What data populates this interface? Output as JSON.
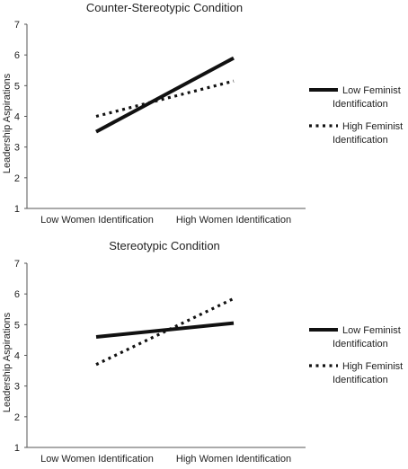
{
  "chart_data": [
    {
      "type": "line",
      "title": "Counter-Stereotypic Condition",
      "xlabel": "",
      "ylabel": "Leadership Aspirations",
      "categories": [
        "Low Women Identification",
        "High Women Identification"
      ],
      "ylim": [
        1,
        7
      ],
      "yticks": [
        "1",
        "2",
        "3",
        "4",
        "5",
        "6",
        "7"
      ],
      "grid": false,
      "legend_position": "right",
      "series": [
        {
          "name": "Low Feminist Identification",
          "line1": "Low Feminist",
          "line2": "Identification",
          "style": "solid",
          "values": [
            3.5,
            5.9
          ]
        },
        {
          "name": "High Feminist Identification",
          "line1": "High Feminist",
          "line2": "Identification",
          "style": "dotted",
          "values": [
            4.0,
            5.15
          ]
        }
      ]
    },
    {
      "type": "line",
      "title": "Stereotypic Condition",
      "xlabel": "",
      "ylabel": "Leadership Aspirations",
      "categories": [
        "Low Women Identification",
        "High Women Identification"
      ],
      "ylim": [
        1,
        7
      ],
      "yticks": [
        "1",
        "2",
        "3",
        "4",
        "5",
        "6",
        "7"
      ],
      "grid": false,
      "legend_position": "right",
      "series": [
        {
          "name": "Low Feminist Identification",
          "line1": "Low Feminist",
          "line2": "Identification",
          "style": "solid",
          "values": [
            4.6,
            5.05
          ]
        },
        {
          "name": "High Feminist Identification",
          "line1": "High Feminist",
          "line2": "Identification",
          "style": "dotted",
          "values": [
            3.7,
            5.85
          ]
        }
      ]
    }
  ]
}
